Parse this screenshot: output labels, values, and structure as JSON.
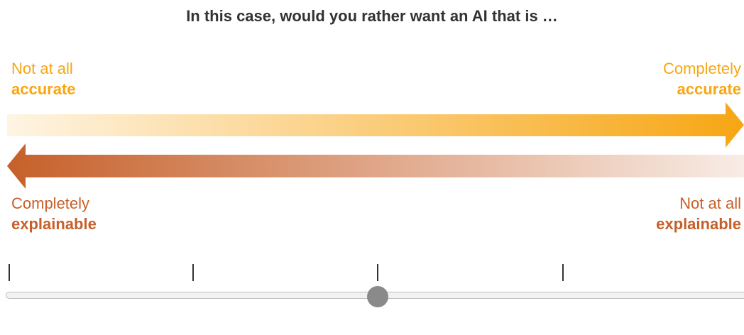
{
  "question": "In this case, would you rather want an AI that is …",
  "accuracy": {
    "low_prefix": "Not at all",
    "low_term": "accurate",
    "high_prefix": "Completely",
    "high_term": "accurate",
    "color": "#f7a614"
  },
  "explainability": {
    "high_prefix": "Completely",
    "high_term": "explainable",
    "low_prefix": "Not at all",
    "low_term": "explainable",
    "color": "#c6602a"
  },
  "slider": {
    "tick_count": 5,
    "value_fraction": 0.5,
    "thumb_color": "#8a8a8a"
  }
}
